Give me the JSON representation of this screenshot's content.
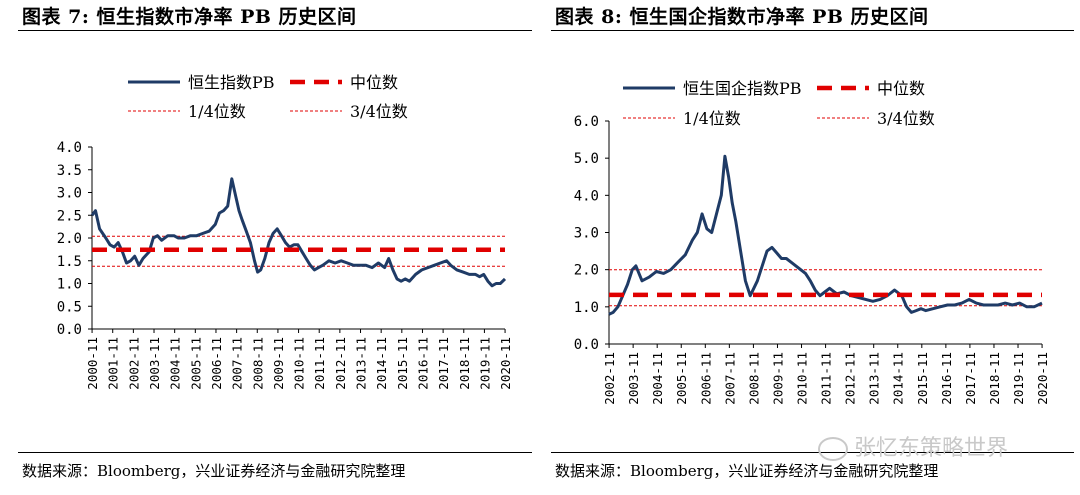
{
  "figures": [
    {
      "title": "图表 7:  恒生指数市净率 PB 历史区间",
      "source": "数据来源：Bloomberg，兴业证券经济与金融研究院整理"
    },
    {
      "title": "图表 8:  恒生国企指数市净率 PB 历史区间",
      "source": "数据来源：Bloomberg，兴业证券经济与金融研究院整理"
    }
  ],
  "watermark": "张忆东策略世界",
  "colors": {
    "series": "#1F3B66",
    "median": "#E00000",
    "quartile": "#E00000",
    "axis": "#000000"
  },
  "chart_data": [
    {
      "type": "line",
      "title": "",
      "xlabel": "",
      "ylabel": "",
      "ylim": [
        0,
        4
      ],
      "yticks": [
        "0.0",
        "0.5",
        "1.0",
        "1.5",
        "2.0",
        "2.5",
        "3.0",
        "3.5",
        "4.0"
      ],
      "xlim": [
        2000.83,
        2020.83
      ],
      "xticks": [
        "2000-11",
        "2001-11",
        "2002-11",
        "2003-11",
        "2004-11",
        "2005-11",
        "2006-11",
        "2007-11",
        "2008-11",
        "2009-11",
        "2010-11",
        "2011-11",
        "2012-11",
        "2013-11",
        "2014-11",
        "2015-11",
        "2016-11",
        "2017-11",
        "2018-11",
        "2019-11",
        "2020-11"
      ],
      "grid": false,
      "legend": [
        "恒生指数PB",
        "中位数",
        "1/4位数",
        "3/4位数"
      ],
      "series": [
        {
          "name": "恒生指数PB",
          "style": "solid",
          "x": [
            2000.83,
            2001.0,
            2001.2,
            2001.5,
            2001.7,
            2001.9,
            2002.1,
            2002.3,
            2002.5,
            2002.7,
            2002.9,
            2003.1,
            2003.3,
            2003.6,
            2003.8,
            2004.0,
            2004.2,
            2004.5,
            2004.8,
            2005.0,
            2005.3,
            2005.6,
            2005.9,
            2006.2,
            2006.5,
            2006.8,
            2007.0,
            2007.2,
            2007.4,
            2007.6,
            2007.8,
            2007.95,
            2008.1,
            2008.3,
            2008.5,
            2008.7,
            2008.85,
            2009.0,
            2009.2,
            2009.4,
            2009.6,
            2009.8,
            2010.0,
            2010.2,
            2010.4,
            2010.6,
            2010.8,
            2011.0,
            2011.2,
            2011.4,
            2011.6,
            2011.8,
            2012.0,
            2012.3,
            2012.6,
            2012.9,
            2013.2,
            2013.5,
            2013.8,
            2014.1,
            2014.4,
            2014.7,
            2015.0,
            2015.2,
            2015.4,
            2015.6,
            2015.8,
            2016.0,
            2016.2,
            2016.5,
            2016.8,
            2017.1,
            2017.4,
            2017.7,
            2018.0,
            2018.2,
            2018.5,
            2018.8,
            2019.1,
            2019.4,
            2019.6,
            2019.8,
            2020.0,
            2020.2,
            2020.4,
            2020.6,
            2020.83
          ],
          "y": [
            2.5,
            2.6,
            2.2,
            2.0,
            1.85,
            1.8,
            1.9,
            1.7,
            1.45,
            1.5,
            1.6,
            1.4,
            1.55,
            1.7,
            2.0,
            2.05,
            1.95,
            2.05,
            2.05,
            2.0,
            2.0,
            2.05,
            2.05,
            2.1,
            2.15,
            2.3,
            2.55,
            2.6,
            2.7,
            3.3,
            2.9,
            2.6,
            2.4,
            2.15,
            1.9,
            1.5,
            1.25,
            1.3,
            1.55,
            1.9,
            2.1,
            2.2,
            2.05,
            1.9,
            1.8,
            1.85,
            1.85,
            1.7,
            1.55,
            1.4,
            1.3,
            1.35,
            1.4,
            1.5,
            1.45,
            1.5,
            1.45,
            1.4,
            1.4,
            1.4,
            1.35,
            1.45,
            1.35,
            1.55,
            1.3,
            1.1,
            1.05,
            1.1,
            1.05,
            1.2,
            1.3,
            1.35,
            1.4,
            1.45,
            1.5,
            1.4,
            1.3,
            1.25,
            1.2,
            1.2,
            1.15,
            1.2,
            1.05,
            0.95,
            1.0,
            1.0,
            1.1
          ]
        },
        {
          "name": "中位数",
          "style": "dashed",
          "x": [
            2000.83,
            2020.83
          ],
          "y": [
            1.74,
            1.74
          ]
        },
        {
          "name": "1/4位数",
          "style": "thin-dashed",
          "x": [
            2000.83,
            2020.83
          ],
          "y": [
            1.38,
            1.38
          ]
        },
        {
          "name": "3/4位数",
          "style": "thin-dashed",
          "x": [
            2000.83,
            2020.83
          ],
          "y": [
            2.04,
            2.04
          ]
        }
      ]
    },
    {
      "type": "line",
      "title": "",
      "xlabel": "",
      "ylabel": "",
      "ylim": [
        0,
        6
      ],
      "yticks": [
        "0.0",
        "1.0",
        "2.0",
        "3.0",
        "4.0",
        "5.0",
        "6.0"
      ],
      "xlim": [
        2002.83,
        2020.83
      ],
      "xticks": [
        "2002-11",
        "2003-11",
        "2004-11",
        "2005-11",
        "2006-11",
        "2007-11",
        "2008-11",
        "2009-11",
        "2010-11",
        "2011-11",
        "2012-11",
        "2013-11",
        "2014-11",
        "2015-11",
        "2016-11",
        "2017-11",
        "2018-11",
        "2019-11",
        "2020-11"
      ],
      "grid": false,
      "legend": [
        "恒生国企指数PB",
        "中位数",
        "1/4位数",
        "3/4位数"
      ],
      "series": [
        {
          "name": "恒生国企指数PB",
          "style": "solid",
          "x": [
            2002.83,
            2003.0,
            2003.2,
            2003.4,
            2003.6,
            2003.8,
            2003.95,
            2004.2,
            2004.5,
            2004.8,
            2005.1,
            2005.4,
            2005.7,
            2006.0,
            2006.3,
            2006.5,
            2006.7,
            2006.9,
            2007.1,
            2007.3,
            2007.5,
            2007.65,
            2007.8,
            2007.95,
            2008.1,
            2008.3,
            2008.5,
            2008.7,
            2008.85,
            2009.0,
            2009.2,
            2009.4,
            2009.6,
            2009.8,
            2010.0,
            2010.2,
            2010.4,
            2010.6,
            2010.8,
            2011.0,
            2011.2,
            2011.4,
            2011.6,
            2011.8,
            2012.0,
            2012.3,
            2012.6,
            2012.9,
            2013.2,
            2013.5,
            2013.8,
            2014.1,
            2014.4,
            2014.7,
            2015.0,
            2015.2,
            2015.4,
            2015.6,
            2015.8,
            2016.0,
            2016.3,
            2016.6,
            2016.9,
            2017.2,
            2017.5,
            2017.8,
            2018.1,
            2018.4,
            2018.7,
            2019.0,
            2019.3,
            2019.6,
            2019.9,
            2020.2,
            2020.5,
            2020.83
          ],
          "y": [
            0.8,
            0.85,
            1.0,
            1.3,
            1.6,
            2.0,
            2.1,
            1.7,
            1.8,
            1.95,
            1.9,
            2.0,
            2.2,
            2.4,
            2.8,
            3.0,
            3.5,
            3.1,
            3.0,
            3.5,
            4.0,
            5.05,
            4.5,
            3.8,
            3.3,
            2.5,
            1.7,
            1.3,
            1.5,
            1.7,
            2.1,
            2.5,
            2.6,
            2.45,
            2.3,
            2.3,
            2.2,
            2.1,
            2.0,
            1.9,
            1.7,
            1.45,
            1.3,
            1.4,
            1.5,
            1.35,
            1.4,
            1.3,
            1.25,
            1.2,
            1.15,
            1.2,
            1.3,
            1.45,
            1.3,
            1.0,
            0.85,
            0.9,
            0.95,
            0.9,
            0.95,
            1.0,
            1.05,
            1.05,
            1.1,
            1.2,
            1.1,
            1.05,
            1.05,
            1.05,
            1.1,
            1.05,
            1.1,
            1.0,
            1.0,
            1.1
          ]
        },
        {
          "name": "中位数",
          "style": "dashed",
          "x": [
            2002.83,
            2020.83
          ],
          "y": [
            1.32,
            1.32
          ]
        },
        {
          "name": "1/4位数",
          "style": "thin-dashed",
          "x": [
            2002.83,
            2020.83
          ],
          "y": [
            1.03,
            1.03
          ]
        },
        {
          "name": "3/4位数",
          "style": "thin-dashed",
          "x": [
            2002.83,
            2020.83
          ],
          "y": [
            2.0,
            2.0
          ]
        }
      ]
    }
  ]
}
